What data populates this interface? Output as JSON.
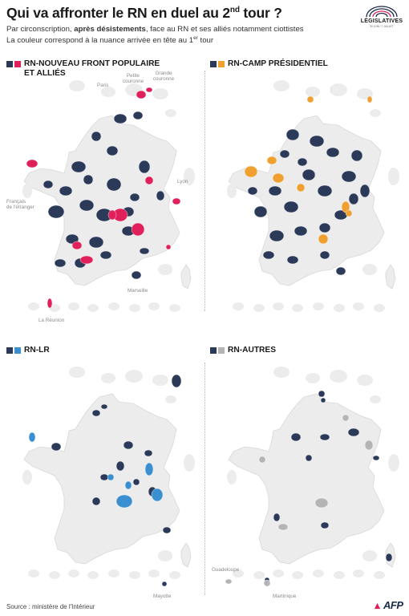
{
  "header": {
    "title_main": "Qui va affronter le RN en duel au 2",
    "title_sup": "nd",
    "title_end": " tour ?",
    "subtitle_pre": "Par circonscription, ",
    "subtitle_bold": "après désistements",
    "subtitle_post": ", face au RN et ses alliés notamment ciottistes",
    "subtitle2_main": "La couleur correspond à la nuance arrivée en tête au 1",
    "subtitle2_sup": "er",
    "subtitle2_end": " tour"
  },
  "logo": {
    "main": "LÉGISLATIVES",
    "sub": "30 JUIN / 7 JUILLET"
  },
  "colors": {
    "rn": "#2c3a5a",
    "nfp": "#e0205a",
    "ensemble": "#f0a030",
    "lr": "#3a8fd0",
    "autres": "#b4b4b4",
    "base": "#ececec",
    "border": "#ffffff"
  },
  "panels": [
    {
      "id": "nfp",
      "title_line1": "RN-NOUVEAU FRONT POPULAIRE",
      "title_line2": "ET ALLIÉS",
      "partner_color": "#e0205a"
    },
    {
      "id": "ens",
      "title_line1": "RN-CAMP PRÉSIDENTIEL",
      "title_line2": "",
      "partner_color": "#f0a030"
    },
    {
      "id": "lr",
      "title_line1": "RN-LR",
      "title_line2": "",
      "partner_color": "#3a8fd0"
    },
    {
      "id": "aut",
      "title_line1": "RN-AUTRES",
      "title_line2": "",
      "partner_color": "#b4b4b4"
    }
  ],
  "map_labels": {
    "paris": "Paris",
    "petite_couronne_1": "Petite",
    "petite_couronne_2": "couronne",
    "grande_couronne_1": "Grande",
    "grande_couronne_2": "couronne",
    "lyon": "Lyon",
    "etranger_1": "Français",
    "etranger_2": "de l'étranger",
    "marseille": "Marseille",
    "reunion": "La Réunion",
    "mayotte": "Mayotte",
    "guadeloupe": "Guadeloupe",
    "martinique": "Martinique"
  },
  "footer": {
    "source": "Source : ministère de l'Intérieur",
    "agency": "AFP"
  }
}
